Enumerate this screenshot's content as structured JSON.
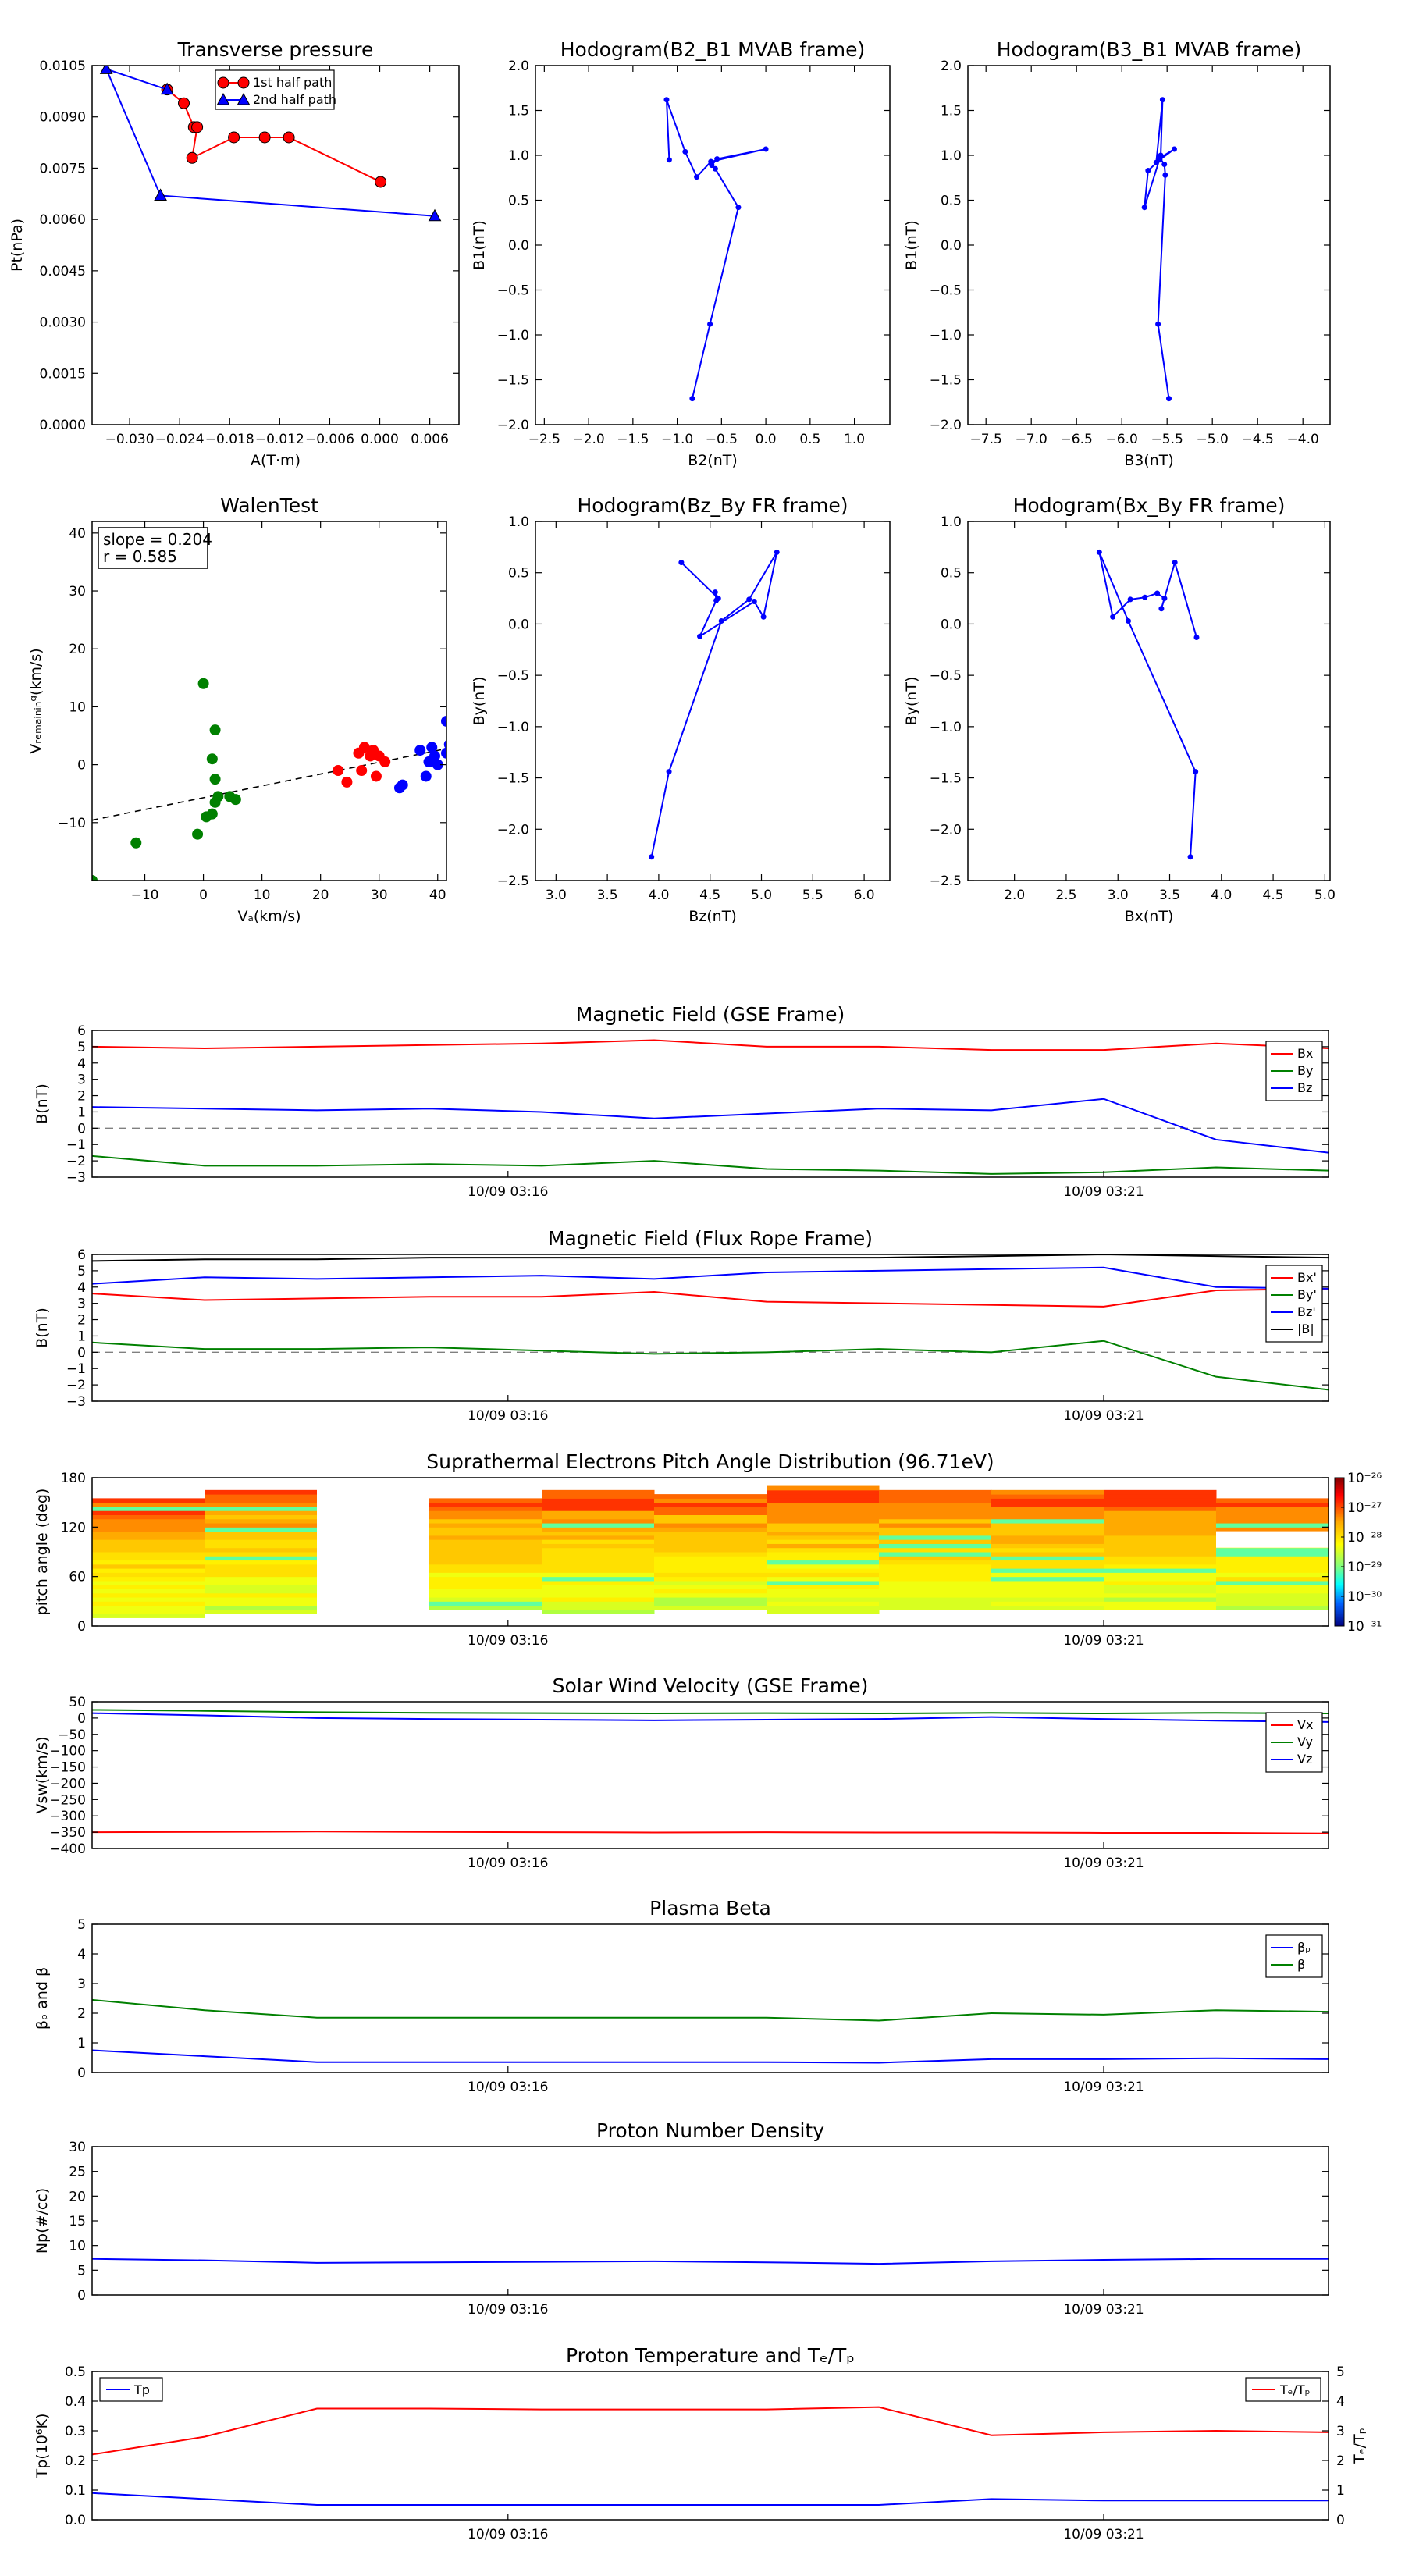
{
  "figure": {
    "colors": {
      "red": "#ff0000",
      "green": "#008000",
      "blue": "#0000ff",
      "black": "#000000",
      "gray": "#808080"
    }
  },
  "chart_data": [
    {
      "id": "transverse_pressure",
      "type": "line",
      "title": "Transverse pressure",
      "xlabel": "A(T·m)",
      "ylabel": "Pt(nPa)",
      "xlim": [
        -0.0345,
        0.0095
      ],
      "ylim": [
        0,
        0.0105
      ],
      "xticks": [
        -0.03,
        -0.024,
        -0.018,
        -0.012,
        -0.006,
        0.0,
        0.006
      ],
      "xtick_labels": [
        "−0.030",
        "−0.024",
        "−0.018",
        "−0.012",
        "−0.006",
        "0.000",
        "0.006"
      ],
      "yticks": [
        0,
        0.0015,
        0.003,
        0.0045,
        0.006,
        0.0075,
        0.009,
        0.0105
      ],
      "ytick_labels": [
        "0.0000",
        "0.0015",
        "0.0030",
        "0.0045",
        "0.0060",
        "0.0075",
        "0.0090",
        "0.0105"
      ],
      "legend": "upper center",
      "series": [
        {
          "name": "1st half path",
          "color": "red",
          "marker": "circle",
          "x": [
            -0.0255,
            -0.0235,
            -0.0223,
            -0.0219,
            -0.0225,
            -0.0175,
            -0.0138,
            -0.0109,
            0.0001
          ],
          "y": [
            0.0098,
            0.0094,
            0.0087,
            0.0087,
            0.0078,
            0.0084,
            0.0084,
            0.0084,
            0.0071
          ]
        },
        {
          "name": "2nd half path",
          "color": "blue",
          "marker": "triangle",
          "x": [
            0.0066,
            -0.0263,
            -0.0328,
            -0.0255
          ],
          "y": [
            0.0061,
            0.0067,
            0.0104,
            0.0098
          ]
        }
      ]
    },
    {
      "id": "hodo_b2b1",
      "type": "line",
      "title": "Hodogram(B2_B1 MVAB frame)",
      "xlabel": "B2(nT)",
      "ylabel": "B1(nT)",
      "xlim": [
        -2.6,
        1.4
      ],
      "ylim": [
        -2.0,
        2.0
      ],
      "xticks": [
        -2.5,
        -2.0,
        -1.5,
        -1.0,
        -0.5,
        0.0,
        0.5,
        1.0
      ],
      "xtick_labels": [
        "−2.5",
        "−2.0",
        "−1.5",
        "−1.0",
        "−0.5",
        "0.0",
        "0.5",
        "1.0"
      ],
      "yticks": [
        -2.0,
        -1.5,
        -1.0,
        -0.5,
        0.0,
        0.5,
        1.0,
        1.5,
        2.0
      ],
      "ytick_labels": [
        "−2.0",
        "−1.5",
        "−1.0",
        "−0.5",
        "0.0",
        "0.5",
        "1.0",
        "1.5",
        "2.0"
      ],
      "series": [
        {
          "color": "blue",
          "marker": "dot",
          "x": [
            -0.83,
            -0.63,
            -0.31,
            -0.57,
            -0.61,
            -0.55,
            0.0,
            -0.62,
            -0.78,
            -0.91,
            -1.12,
            -1.09
          ],
          "y": [
            -1.71,
            -0.88,
            0.42,
            0.85,
            0.89,
            0.96,
            1.07,
            0.93,
            0.76,
            1.04,
            1.62,
            0.95
          ]
        }
      ]
    },
    {
      "id": "hodo_b3b1",
      "type": "line",
      "title": "Hodogram(B3_B1 MVAB frame)",
      "xlabel": "B3(nT)",
      "ylabel": "B1(nT)",
      "xlim": [
        -7.7,
        -3.7
      ],
      "ylim": [
        -2.0,
        2.0
      ],
      "xticks": [
        -7.5,
        -7.0,
        -6.5,
        -6.0,
        -5.5,
        -5.0,
        -4.5,
        -4.0
      ],
      "xtick_labels": [
        "−7.5",
        "−7.0",
        "−6.5",
        "−6.0",
        "−5.5",
        "−5.0",
        "−4.5",
        "−4.0"
      ],
      "yticks": [
        -2.0,
        -1.5,
        -1.0,
        -0.5,
        0.0,
        0.5,
        1.0,
        1.5,
        2.0
      ],
      "ytick_labels": [
        "−2.0",
        "−1.5",
        "−1.0",
        "−0.5",
        "0.0",
        "0.5",
        "1.0",
        "1.5",
        "2.0"
      ],
      "series": [
        {
          "color": "blue",
          "marker": "dot",
          "x": [
            -5.48,
            -5.6,
            -5.52,
            -5.53,
            -5.58,
            -5.42,
            -5.58,
            -5.71,
            -5.75,
            -5.57,
            -5.55,
            -5.62
          ],
          "y": [
            -1.71,
            -0.88,
            0.78,
            0.9,
            0.97,
            1.07,
            0.95,
            0.83,
            0.42,
            1.0,
            1.62,
            0.92
          ]
        }
      ]
    },
    {
      "id": "walen",
      "type": "scatter",
      "title": "WalenTest",
      "xlabel": "Vₐ(km/s)",
      "ylabel": "Vᵣₑₘₐᵢₙᵢₙᵍ(km/s)",
      "xlim": [
        -19,
        41.5
      ],
      "ylim": [
        -20,
        42
      ],
      "xticks": [
        -10,
        0,
        10,
        20,
        30,
        40
      ],
      "xtick_labels": [
        "−10",
        "0",
        "10",
        "20",
        "30",
        "40"
      ],
      "yticks": [
        -10,
        0,
        10,
        20,
        30,
        40
      ],
      "ytick_labels": [
        "−10",
        "0",
        "10",
        "20",
        "30",
        "40"
      ],
      "annotation": [
        "slope = 0.204",
        "r = 0.585"
      ],
      "fit": {
        "slope": 0.204,
        "intercept": -5.7,
        "style": "dashed"
      },
      "series": [
        {
          "color": "green",
          "x": [
            -19,
            -11.5,
            -1,
            0.5,
            1.5,
            2,
            2.5,
            2,
            4.5,
            1.5,
            5.5,
            2,
            0
          ],
          "y": [
            -20,
            -13.5,
            -12,
            -9,
            -8.5,
            -6.5,
            -5.5,
            -2.5,
            -5.5,
            1,
            -6,
            6,
            14
          ]
        },
        {
          "color": "red",
          "x": [
            23,
            24.5,
            26.5,
            27,
            27.5,
            28.5,
            29,
            29.5,
            30,
            31
          ],
          "y": [
            -1,
            -3,
            2,
            -1,
            3,
            1.5,
            2.5,
            -2,
            1.5,
            0.5
          ]
        },
        {
          "color": "blue",
          "x": [
            33.5,
            34,
            37,
            38,
            38.5,
            39,
            39.5,
            40,
            41.5,
            41.5,
            42
          ],
          "y": [
            -4,
            -3.5,
            2.5,
            -2,
            0.5,
            3,
            1.5,
            0,
            2,
            7.5,
            3.5
          ]
        }
      ]
    },
    {
      "id": "hodo_bzby",
      "type": "line",
      "title": "Hodogram(Bz_By FR frame)",
      "xlabel": "Bz(nT)",
      "ylabel": "By(nT)",
      "xlim": [
        2.8,
        6.25
      ],
      "ylim": [
        -2.5,
        1.0
      ],
      "xticks": [
        3.0,
        3.5,
        4.0,
        4.5,
        5.0,
        5.5,
        6.0
      ],
      "xtick_labels": [
        "3.0",
        "3.5",
        "4.0",
        "4.5",
        "5.0",
        "5.5",
        "6.0"
      ],
      "yticks": [
        -2.5,
        -2.0,
        -1.5,
        -1.0,
        -0.5,
        0.0,
        0.5,
        1.0
      ],
      "ytick_labels": [
        "−2.5",
        "−2.0",
        "−1.5",
        "−1.0",
        "−0.5",
        "0.0",
        "0.5",
        "1.0"
      ],
      "series": [
        {
          "color": "blue",
          "marker": "dot",
          "x": [
            3.93,
            4.1,
            4.61,
            4.88,
            5.15,
            5.02,
            4.93,
            4.4,
            4.56,
            4.55,
            4.58,
            4.22
          ],
          "y": [
            -2.27,
            -1.44,
            0.03,
            0.24,
            0.7,
            0.07,
            0.22,
            -0.12,
            0.23,
            0.31,
            0.25,
            0.6
          ]
        }
      ]
    },
    {
      "id": "hodo_bxby",
      "type": "line",
      "title": "Hodogram(Bx_By FR frame)",
      "xlabel": "Bx(nT)",
      "ylabel": "By(nT)",
      "xlim": [
        1.55,
        5.05
      ],
      "ylim": [
        -2.5,
        1.0
      ],
      "xticks": [
        2.0,
        2.5,
        3.0,
        3.5,
        4.0,
        4.5,
        5.0
      ],
      "xtick_labels": [
        "2.0",
        "2.5",
        "3.0",
        "3.5",
        "4.0",
        "4.5",
        "5.0"
      ],
      "yticks": [
        -2.5,
        -2.0,
        -1.5,
        -1.0,
        -0.5,
        0.0,
        0.5,
        1.0
      ],
      "ytick_labels": [
        "−2.5",
        "−2.0",
        "−1.5",
        "−1.0",
        "−0.5",
        "0.0",
        "0.5",
        "1.0"
      ],
      "series": [
        {
          "color": "blue",
          "marker": "dot",
          "x": [
            3.7,
            3.75,
            3.1,
            2.82,
            2.95,
            3.12,
            3.26,
            3.38,
            3.45,
            3.42,
            3.55,
            3.76
          ],
          "y": [
            -2.27,
            -1.44,
            0.03,
            0.7,
            0.07,
            0.24,
            0.26,
            0.3,
            0.25,
            0.15,
            0.6,
            -0.13
          ]
        }
      ]
    },
    {
      "id": "mag_gse",
      "type": "line",
      "title": "Magnetic Field (GSE Frame)",
      "ylabel": "B(nT)",
      "ylim": [
        -3,
        6
      ],
      "yticks": [
        -3,
        -2,
        -1,
        0,
        1,
        2,
        3,
        4,
        5,
        6
      ],
      "ytick_labels": [
        "−3",
        "−2",
        "−1",
        "0",
        "1",
        "2",
        "3",
        "4",
        "5",
        "6"
      ],
      "zero_line": true,
      "legend": "upper right",
      "series": [
        {
          "name": "Bx",
          "color": "red",
          "values": [
            5.0,
            4.9,
            5.0,
            5.1,
            5.2,
            5.4,
            5.0,
            5.0,
            4.8,
            4.8,
            5.2,
            4.9
          ]
        },
        {
          "name": "By",
          "color": "green",
          "values": [
            -1.7,
            -2.3,
            -2.3,
            -2.2,
            -2.3,
            -2.0,
            -2.5,
            -2.6,
            -2.8,
            -2.7,
            -2.4,
            -2.6
          ]
        },
        {
          "name": "Bz",
          "color": "blue",
          "values": [
            1.3,
            1.2,
            1.1,
            1.2,
            1.0,
            0.6,
            0.9,
            1.2,
            1.1,
            1.8,
            -0.7,
            -1.5
          ]
        }
      ]
    },
    {
      "id": "mag_fr",
      "type": "line",
      "title": "Magnetic Field (Flux Rope Frame)",
      "ylabel": "B(nT)",
      "ylim": [
        -3,
        6
      ],
      "yticks": [
        -3,
        -2,
        -1,
        0,
        1,
        2,
        3,
        4,
        5,
        6
      ],
      "ytick_labels": [
        "−3",
        "−2",
        "−1",
        "0",
        "1",
        "2",
        "3",
        "4",
        "5",
        "6"
      ],
      "zero_line": true,
      "legend": "upper right",
      "series": [
        {
          "name": "Bx'",
          "color": "red",
          "values": [
            3.6,
            3.2,
            3.3,
            3.4,
            3.4,
            3.7,
            3.1,
            3.0,
            2.9,
            2.8,
            3.8,
            3.9
          ]
        },
        {
          "name": "By'",
          "color": "green",
          "values": [
            0.6,
            0.2,
            0.2,
            0.3,
            0.1,
            -0.1,
            0.0,
            0.2,
            0.0,
            0.7,
            -1.5,
            -2.3
          ]
        },
        {
          "name": "Bz'",
          "color": "blue",
          "values": [
            4.2,
            4.6,
            4.5,
            4.6,
            4.7,
            4.5,
            4.9,
            5.0,
            5.1,
            5.2,
            4.0,
            3.9
          ]
        },
        {
          "name": "|B|",
          "color": "black",
          "values": [
            5.6,
            5.7,
            5.7,
            5.8,
            5.8,
            5.8,
            5.8,
            5.8,
            5.9,
            6.0,
            5.9,
            5.8
          ]
        }
      ]
    },
    {
      "id": "pad",
      "type": "heatmap",
      "title": "Suprathermal Electrons Pitch Angle Distribution (96.71eV)",
      "ylabel": "pitch angle (deg)",
      "ylim": [
        0,
        180
      ],
      "yticks": [
        0,
        60,
        120,
        180
      ],
      "ytick_labels": [
        "0",
        "60",
        "120",
        "180"
      ],
      "colorbar": {
        "ticks": [
          "10⁻²⁶",
          "10⁻²⁷",
          "10⁻²⁸",
          "10⁻²⁹",
          "10⁻³⁰",
          "10⁻³¹"
        ]
      }
    },
    {
      "id": "vsw",
      "type": "line",
      "title": "Solar Wind Velocity (GSE Frame)",
      "ylabel": "Vsw(km/s)",
      "ylim": [
        -400,
        50
      ],
      "yticks": [
        -400,
        -350,
        -300,
        -250,
        -200,
        -150,
        -100,
        -50,
        0,
        50
      ],
      "ytick_labels": [
        "−400",
        "−350",
        "−300",
        "−250",
        "−200",
        "−150",
        "−100",
        "−50",
        "0",
        "50"
      ],
      "legend": "upper right",
      "series": [
        {
          "name": "Vx",
          "color": "red",
          "values": [
            -350,
            -349,
            -348,
            -349,
            -350,
            -351,
            -350,
            -351,
            -351,
            -352,
            -352,
            -354
          ]
        },
        {
          "name": "Vy",
          "color": "green",
          "values": [
            25,
            22,
            18,
            16,
            15,
            14,
            15,
            14,
            16,
            14,
            16,
            14
          ]
        },
        {
          "name": "Vz",
          "color": "blue",
          "values": [
            15,
            8,
            0,
            -3,
            -5,
            -7,
            -5,
            -3,
            3,
            -3,
            -8,
            -12
          ]
        }
      ]
    },
    {
      "id": "beta",
      "type": "line",
      "title": "Plasma Beta",
      "ylabel": "βₚ and β",
      "ylim": [
        0,
        5
      ],
      "yticks": [
        0,
        1,
        2,
        3,
        4,
        5
      ],
      "ytick_labels": [
        "0",
        "1",
        "2",
        "3",
        "4",
        "5"
      ],
      "legend": "upper right",
      "series": [
        {
          "name": "βₚ",
          "color": "blue",
          "values": [
            0.75,
            0.55,
            0.35,
            0.35,
            0.35,
            0.35,
            0.35,
            0.33,
            0.45,
            0.45,
            0.48,
            0.45
          ]
        },
        {
          "name": "β",
          "color": "green",
          "values": [
            2.45,
            2.1,
            1.85,
            1.85,
            1.85,
            1.85,
            1.85,
            1.75,
            2.0,
            1.95,
            2.1,
            2.05
          ]
        }
      ]
    },
    {
      "id": "np",
      "type": "line",
      "title": "Proton Number Density",
      "ylabel": "Np(#/cc)",
      "ylim": [
        0,
        30
      ],
      "yticks": [
        0,
        5,
        10,
        15,
        20,
        25,
        30
      ],
      "ytick_labels": [
        "0",
        "5",
        "10",
        "15",
        "20",
        "25",
        "30"
      ],
      "series": [
        {
          "color": "blue",
          "values": [
            7.3,
            7.0,
            6.5,
            6.6,
            6.7,
            6.8,
            6.6,
            6.3,
            6.8,
            7.1,
            7.3,
            7.3
          ]
        }
      ]
    },
    {
      "id": "tp",
      "type": "line",
      "title": "Proton Temperature and Tₑ/Tₚ",
      "ylabel": "Tp(10⁶K)",
      "ylabel_right": "Tₑ/Tₚ",
      "ylim": [
        0,
        0.5
      ],
      "yticks": [
        0,
        0.1,
        0.2,
        0.3,
        0.4,
        0.5
      ],
      "ytick_labels": [
        "0.0",
        "0.1",
        "0.2",
        "0.3",
        "0.4",
        "0.5"
      ],
      "ylim_right": [
        0,
        5
      ],
      "yticks_right": [
        0,
        1,
        2,
        3,
        4,
        5
      ],
      "ytick_labels_right": [
        "0",
        "1",
        "2",
        "3",
        "4",
        "5"
      ],
      "series": [
        {
          "name": "Tp",
          "color": "blue",
          "axis": "left",
          "values": [
            0.09,
            0.07,
            0.05,
            0.05,
            0.05,
            0.05,
            0.05,
            0.05,
            0.07,
            0.065,
            0.065,
            0.065
          ]
        },
        {
          "name": "Tₑ/Tₚ",
          "color": "red",
          "axis": "right",
          "values": [
            2.2,
            2.8,
            3.75,
            3.75,
            3.72,
            3.72,
            3.72,
            3.8,
            2.85,
            2.95,
            3.0,
            2.95
          ]
        }
      ]
    }
  ],
  "time_axis": {
    "tick_labels": [
      "10/09 03:16",
      "10/09 03:21"
    ],
    "tick_positions": [
      3.7,
      9.0
    ],
    "range": [
      0,
      11
    ],
    "sample_index": [
      0,
      1,
      2,
      3,
      4,
      5,
      6,
      7,
      8,
      9,
      10,
      11
    ]
  }
}
